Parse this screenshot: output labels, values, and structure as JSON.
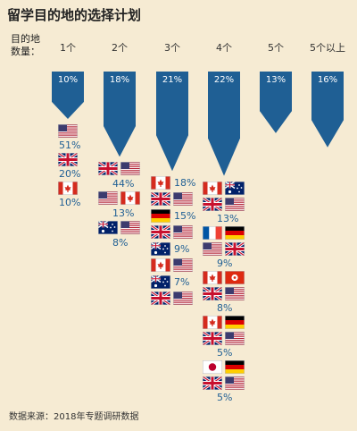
{
  "title": "留学目的地的选择计划",
  "row_label": "目的地数量：",
  "source": "数据来源：2018年专题调研数据",
  "chart_data": {
    "type": "bar",
    "categories": [
      "1个",
      "2个",
      "3个",
      "4个",
      "5个",
      "5个以上"
    ],
    "values": [
      10,
      18,
      21,
      22,
      13,
      16
    ],
    "value_labels": [
      "10%",
      "18%",
      "21%",
      "22%",
      "13%",
      "16%"
    ],
    "combinations": [
      [
        {
          "flags": [
            "us"
          ],
          "label": "51%"
        },
        {
          "flags": [
            "uk"
          ],
          "label": "20%"
        },
        {
          "flags": [
            "ca"
          ],
          "label": "10%"
        }
      ],
      [
        {
          "flags": [
            "uk",
            "us"
          ],
          "label": "44%"
        },
        {
          "flags": [
            "us",
            "ca"
          ],
          "label": "13%"
        },
        {
          "flags": [
            "au",
            "us"
          ],
          "label": "8%"
        }
      ],
      [
        {
          "flags": [
            "ca",
            "uk",
            "us"
          ],
          "label": "18%"
        },
        {
          "flags": [
            "de",
            "uk",
            "us"
          ],
          "label": "15%"
        },
        {
          "flags": [
            "au",
            "ca",
            "us"
          ],
          "label": "9%"
        },
        {
          "flags": [
            "au",
            "uk",
            "us"
          ],
          "label": "7%"
        }
      ],
      [
        {
          "flags": [
            "ca",
            "au",
            "uk",
            "us"
          ],
          "label": "13%"
        },
        {
          "flags": [
            "fr",
            "de",
            "us",
            "uk"
          ],
          "label": "9%"
        },
        {
          "flags": [
            "ca",
            "hk",
            "uk",
            "us"
          ],
          "label": "8%"
        },
        {
          "flags": [
            "ca",
            "de",
            "uk",
            "us"
          ],
          "label": "5%"
        },
        {
          "flags": [
            "jp",
            "de",
            "uk",
            "us"
          ],
          "label": "5%"
        }
      ],
      [],
      []
    ]
  }
}
